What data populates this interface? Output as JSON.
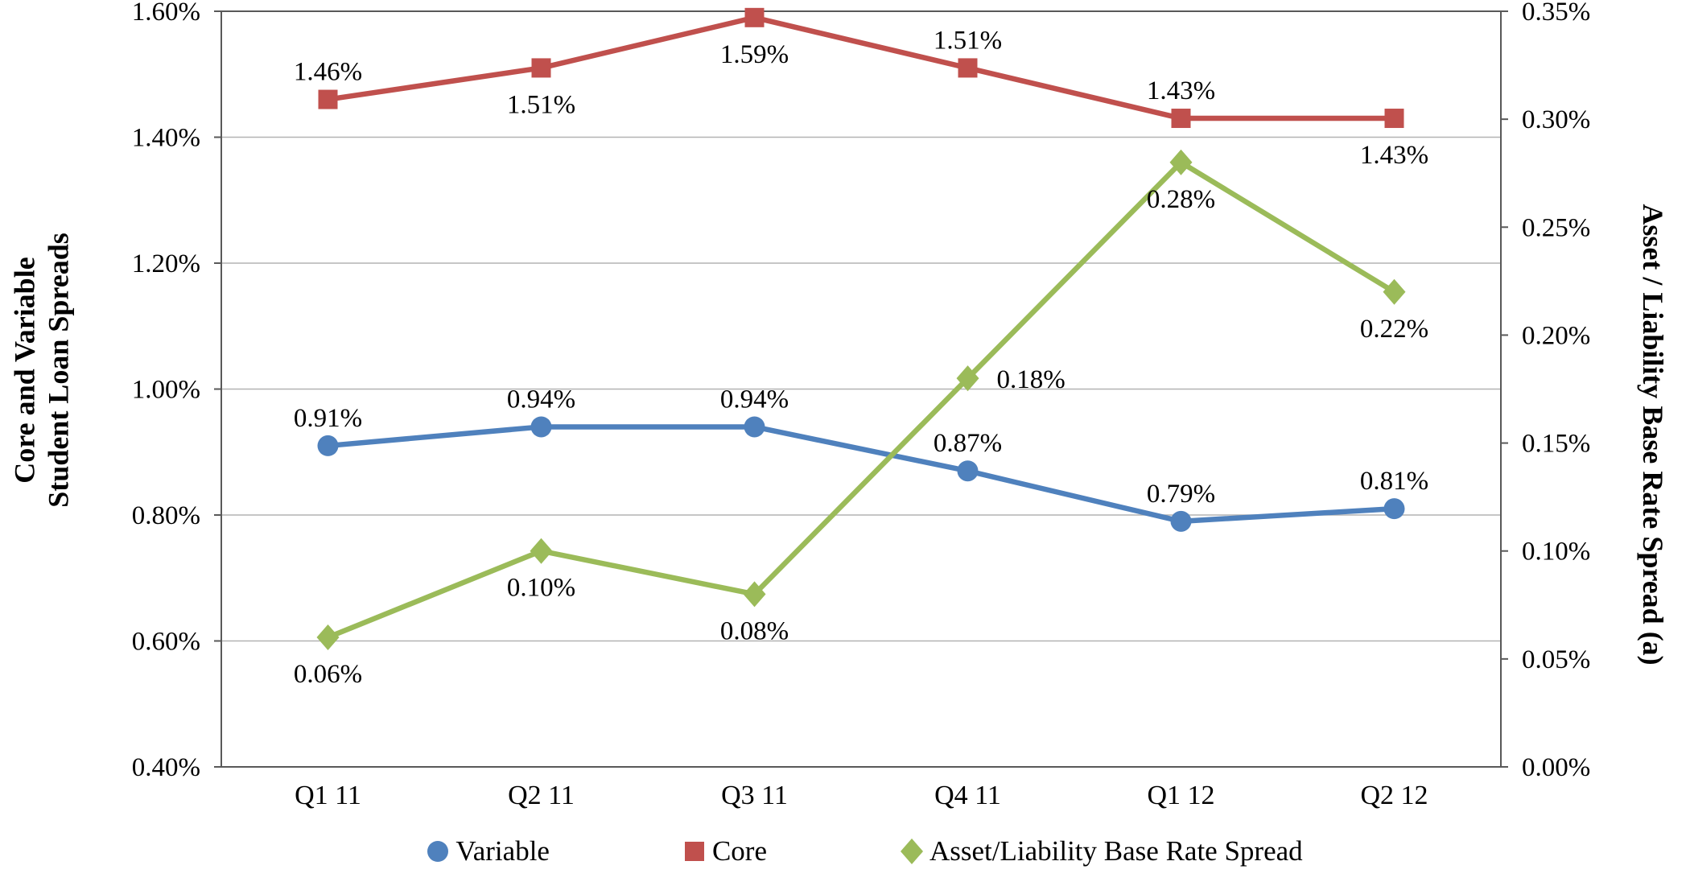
{
  "chart_data": {
    "type": "line",
    "categories": [
      "Q1 11",
      "Q2 11",
      "Q3 11",
      "Q4 11",
      "Q1 12",
      "Q2 12"
    ],
    "left_axis": {
      "title_lines": [
        "Core and Variable",
        "Student Loan Spreads"
      ],
      "min": 0.4,
      "max": 1.6,
      "ticks": [
        "1.60%",
        "1.40%",
        "1.20%",
        "1.00%",
        "0.80%",
        "0.60%",
        "0.40%"
      ]
    },
    "right_axis": {
      "title": "Asset / Liability Base Rate Spread (a)",
      "min": 0.0,
      "max": 0.35,
      "ticks": [
        "0.35%",
        "0.30%",
        "0.25%",
        "0.20%",
        "0.15%",
        "0.10%",
        "0.05%",
        "0.00%"
      ]
    },
    "series": [
      {
        "name": "Variable",
        "axis": "left",
        "color": "#4f81bd",
        "marker": "circle",
        "values": [
          0.91,
          0.94,
          0.94,
          0.87,
          0.79,
          0.81
        ],
        "labels": [
          "0.91%",
          "0.94%",
          "0.94%",
          "0.87%",
          "0.79%",
          "0.81%"
        ],
        "label_pos": [
          "above",
          "above",
          "above",
          "above",
          "above",
          "above"
        ]
      },
      {
        "name": "Core",
        "axis": "left",
        "color": "#c0504d",
        "marker": "square",
        "values": [
          1.46,
          1.51,
          1.59,
          1.51,
          1.43,
          1.43
        ],
        "labels": [
          "1.46%",
          "1.51%",
          "1.59%",
          "1.51%",
          "1.43%",
          "1.43%"
        ],
        "label_pos": [
          "above",
          "below",
          "below",
          "above",
          "above",
          "below"
        ]
      },
      {
        "name": "Asset/Liability Base Rate Spread",
        "axis": "right",
        "color": "#9bbb59",
        "marker": "diamond",
        "values": [
          0.06,
          0.1,
          0.08,
          0.18,
          0.28,
          0.22
        ],
        "labels": [
          "0.06%",
          "0.10%",
          "0.08%",
          "0.18%",
          "0.28%",
          "0.22%"
        ],
        "label_pos": [
          "below",
          "below",
          "below",
          "right",
          "below",
          "below"
        ]
      }
    ],
    "legend_position": "bottom",
    "grid": true,
    "colors": {
      "grid": "#b3b3b3",
      "axis_border": "#595959"
    }
  }
}
